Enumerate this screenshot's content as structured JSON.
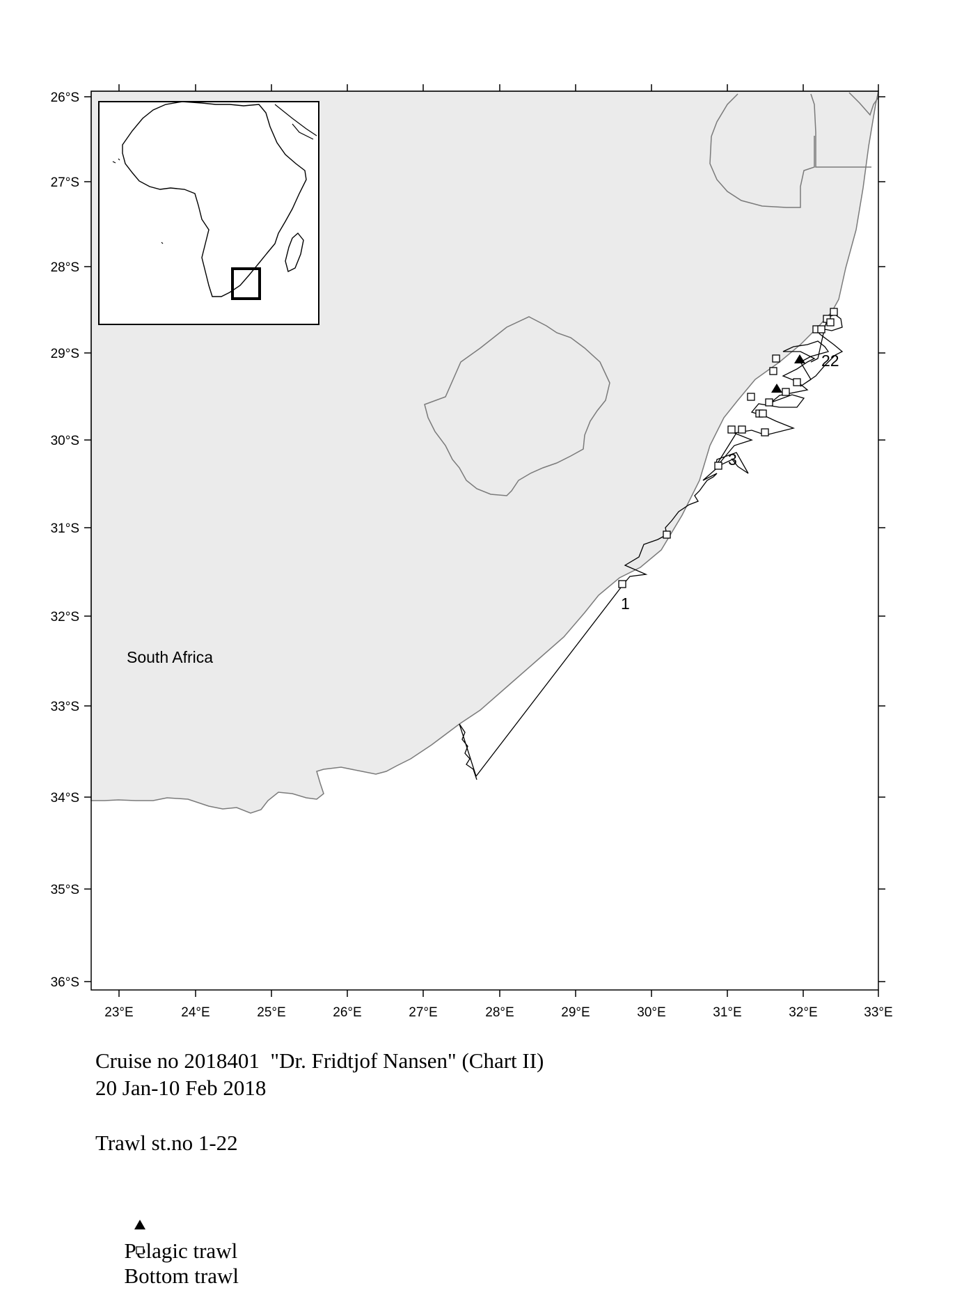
{
  "map": {
    "x_ticks": [
      "23°E",
      "24°E",
      "25°E",
      "26°E",
      "27°E",
      "28°E",
      "29°E",
      "30°E",
      "31°E",
      "32°E",
      "33°E"
    ],
    "y_ticks": [
      "26°S",
      "27°S",
      "28°S",
      "29°S",
      "30°S",
      "31°S",
      "32°S",
      "33°S",
      "34°S",
      "35°S",
      "36°S"
    ],
    "land_label": "South Africa",
    "station_labels": [
      "1",
      "3",
      "22"
    ],
    "colors": {
      "land": "#ebebeb",
      "coast": "#7a7a7a",
      "track": "#000000"
    }
  },
  "caption": {
    "line1": "Cruise no 2018401  \"Dr. Fridtjof Nansen\" (Chart II)",
    "line2": "20 Jan-10 Feb 2018"
  },
  "legend": {
    "title": "Trawl st.no 1-22",
    "pelagic_label": "Pelagic trawl",
    "pelagic_icon": "filled-triangle",
    "bottom_label": "Bottom trawl",
    "bottom_icon": "open-square"
  }
}
